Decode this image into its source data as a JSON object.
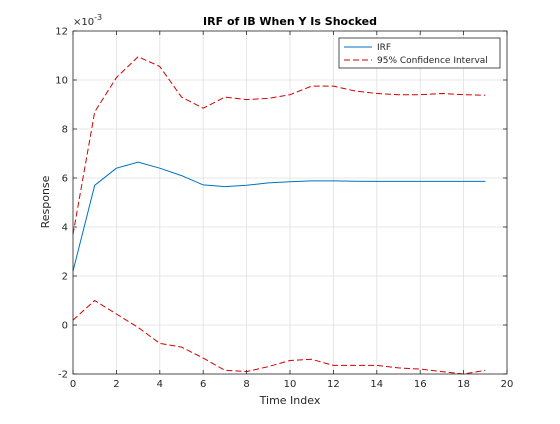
{
  "chart_data": {
    "type": "line",
    "title": "IRF of IB When Y Is Shocked",
    "xlabel": "Time Index",
    "ylabel": "Response",
    "y_exponent_label": "×10",
    "y_exponent": "-3",
    "xlim": [
      0,
      20
    ],
    "ylim": [
      -2,
      12
    ],
    "x_ticks": [
      "0",
      "2",
      "4",
      "6",
      "8",
      "10",
      "12",
      "14",
      "16",
      "18",
      "20"
    ],
    "y_ticks": [
      "-2",
      "0",
      "2",
      "4",
      "6",
      "8",
      "10",
      "12"
    ],
    "grid": true,
    "legend_position": "top-right",
    "x": [
      0,
      1,
      2,
      3,
      4,
      5,
      6,
      7,
      8,
      9,
      10,
      11,
      12,
      13,
      14,
      15,
      16,
      17,
      18,
      19
    ],
    "series": [
      {
        "name": "IRF",
        "color": "#0072bd",
        "style": "solid",
        "values": [
          2.2,
          5.7,
          6.4,
          6.65,
          6.4,
          6.1,
          5.72,
          5.65,
          5.7,
          5.8,
          5.85,
          5.88,
          5.88,
          5.87,
          5.86,
          5.86,
          5.86,
          5.86,
          5.86,
          5.86
        ]
      },
      {
        "name": "95% Confidence Interval",
        "color": "#d00000",
        "style": "dashed",
        "values": [
          3.7,
          8.7,
          10.1,
          10.95,
          10.55,
          9.3,
          8.85,
          9.3,
          9.2,
          9.25,
          9.4,
          9.75,
          9.75,
          9.55,
          9.45,
          9.4,
          9.4,
          9.45,
          9.4,
          9.38
        ]
      },
      {
        "name": "",
        "color": "#d00000",
        "style": "dashed",
        "values": [
          0.2,
          1.0,
          0.45,
          -0.1,
          -0.75,
          -0.9,
          -1.35,
          -1.85,
          -1.9,
          -1.7,
          -1.45,
          -1.4,
          -1.65,
          -1.65,
          -1.65,
          -1.75,
          -1.8,
          -1.9,
          -2.0,
          -1.85
        ]
      }
    ]
  }
}
